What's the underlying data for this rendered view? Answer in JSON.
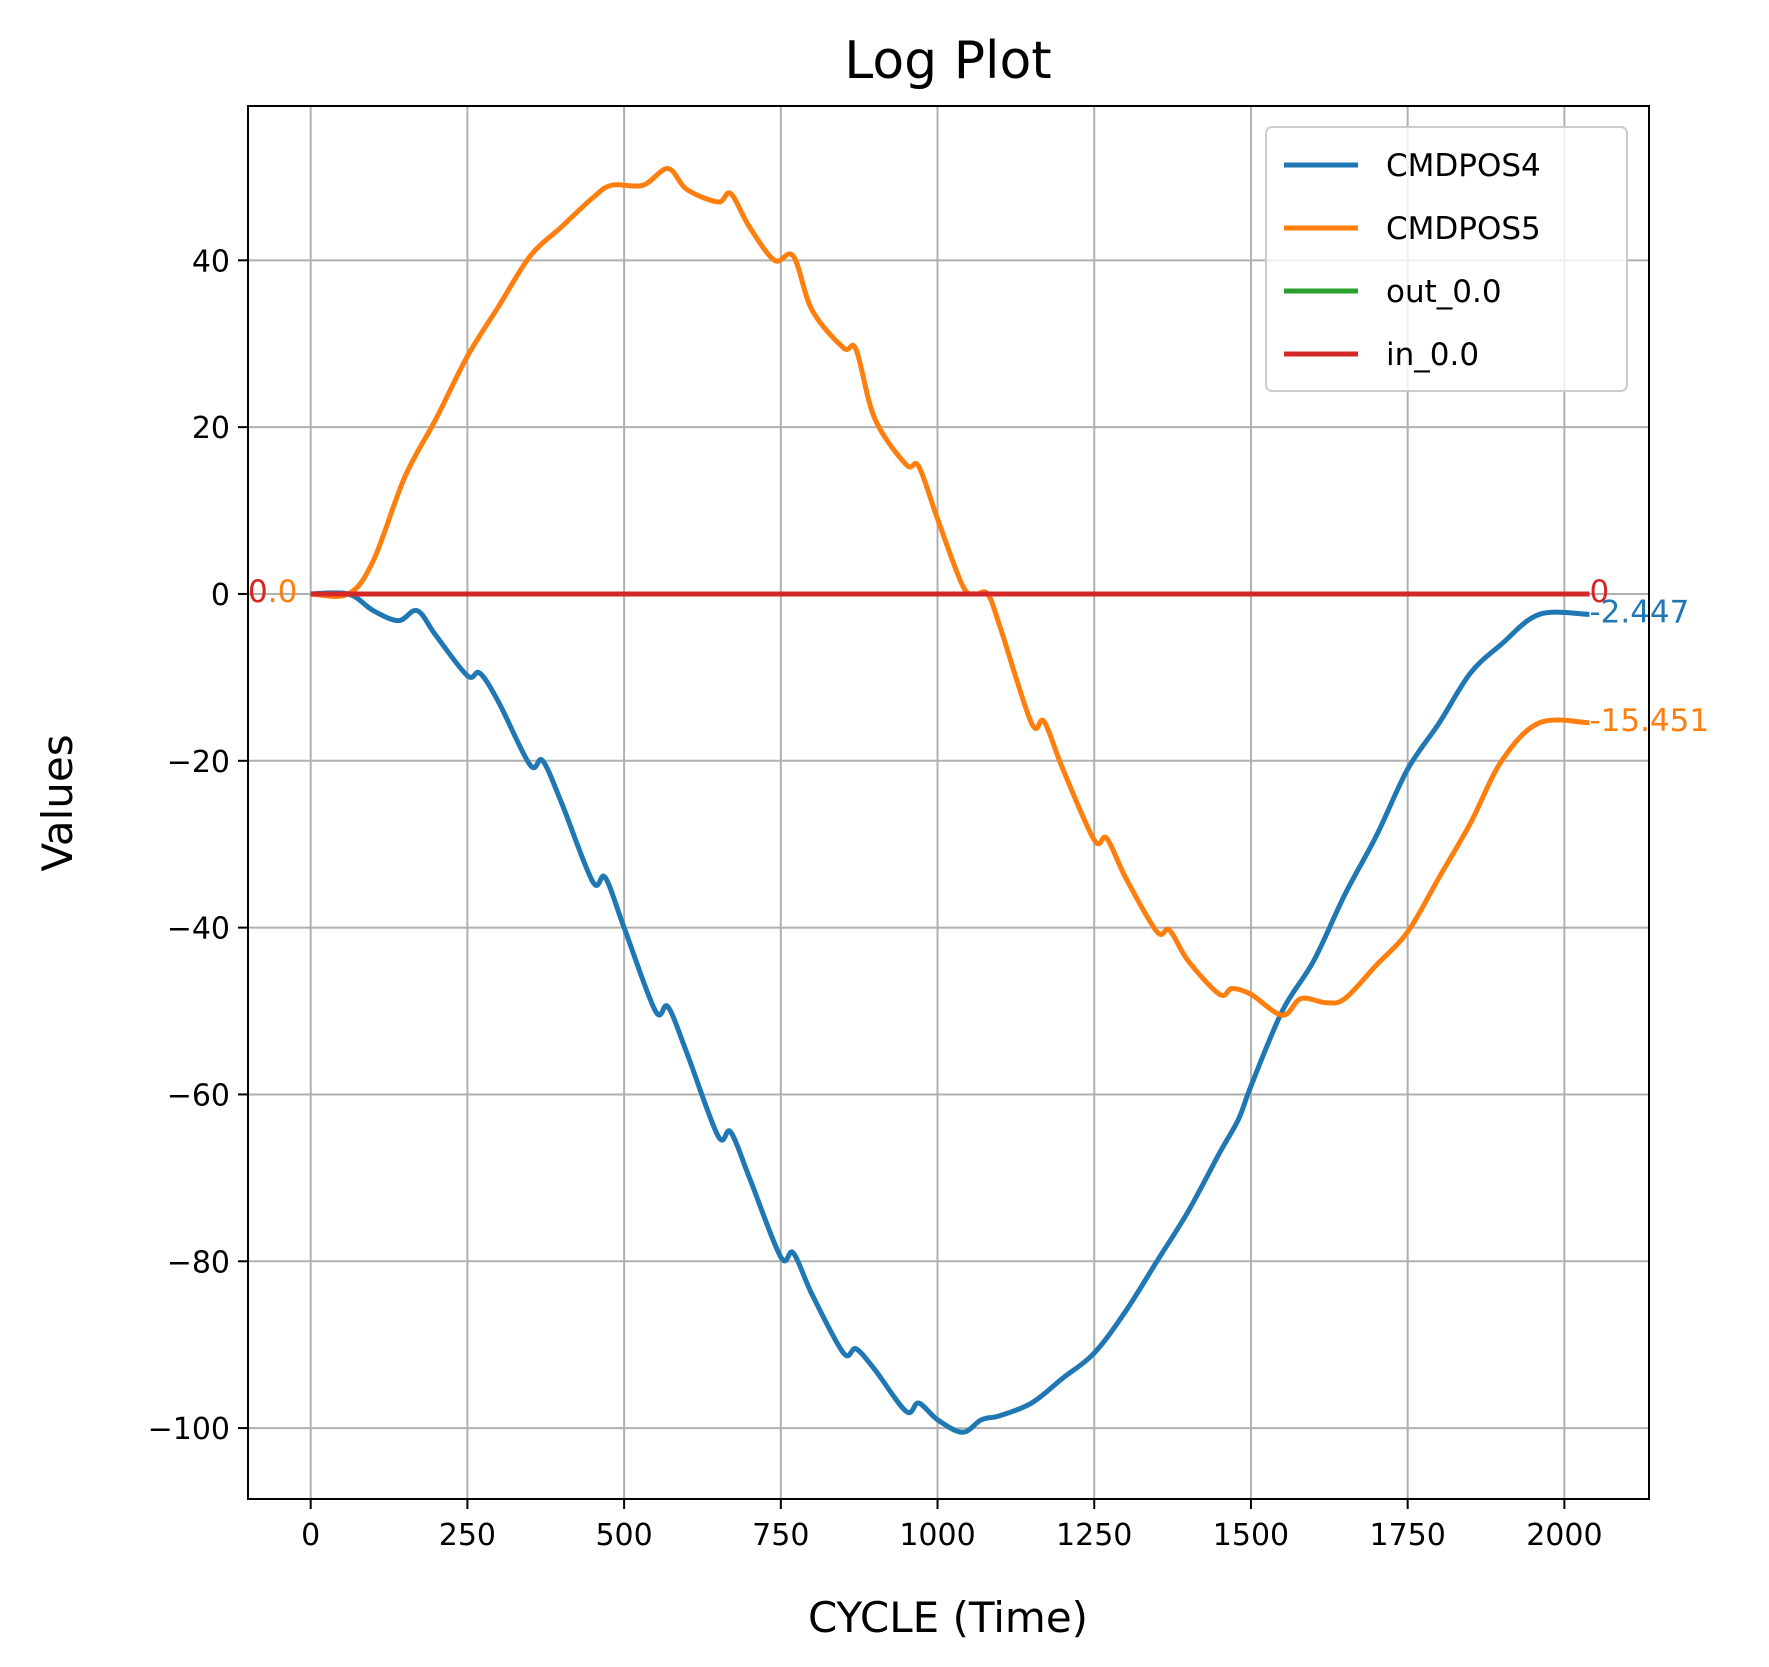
{
  "chart_data": {
    "type": "line",
    "title": "Log Plot",
    "xlabel": "CYCLE (Time)",
    "ylabel": "Values",
    "xlim": [
      -100,
      2135
    ],
    "ylim": [
      -108.5,
      58.5
    ],
    "xticks": [
      0,
      250,
      500,
      750,
      1000,
      1250,
      1500,
      1750,
      2000
    ],
    "yticks": [
      40,
      20,
      0,
      -20,
      -40,
      -60,
      -80,
      -100
    ],
    "xtick_labels": [
      "0",
      "250",
      "500",
      "750",
      "1000",
      "1250",
      "1500",
      "1750",
      "2000"
    ],
    "ytick_labels": [
      "40",
      "20",
      "0",
      "−20",
      "−40",
      "−60",
      "−80",
      "−100"
    ],
    "grid": true,
    "legend_position": "top-right",
    "series": [
      {
        "name": "CMDPOS4",
        "color": "#1f77b4",
        "x": [
          0,
          60,
          100,
          140,
          170,
          200,
          250,
          270,
          300,
          350,
          370,
          400,
          450,
          470,
          500,
          550,
          570,
          600,
          650,
          670,
          700,
          750,
          770,
          800,
          850,
          870,
          900,
          950,
          970,
          1000,
          1040,
          1070,
          1100,
          1150,
          1200,
          1250,
          1300,
          1350,
          1400,
          1450,
          1480,
          1500,
          1550,
          1600,
          1650,
          1700,
          1750,
          1800,
          1850,
          1900,
          1960,
          2040
        ],
        "y": [
          0,
          0,
          -2,
          -3.2,
          -2,
          -5,
          -9.8,
          -9.5,
          -13,
          -20.5,
          -20,
          -25,
          -34.5,
          -34,
          -40,
          -50,
          -49.5,
          -55,
          -65,
          -64.5,
          -70,
          -79.5,
          -79,
          -84,
          -91,
          -90.5,
          -93,
          -98,
          -97,
          -99,
          -100.5,
          -99,
          -98.5,
          -97,
          -94,
          -91,
          -86,
          -80,
          -74,
          -67,
          -63,
          -59,
          -50,
          -44,
          -36,
          -29,
          -21,
          -15.5,
          -9.5,
          -6,
          -2.447,
          -2.447
        ]
      },
      {
        "name": "CMDPOS5",
        "color": "#ff7f0e",
        "x": [
          0,
          60,
          100,
          150,
          200,
          250,
          300,
          350,
          400,
          450,
          480,
          530,
          570,
          600,
          650,
          670,
          700,
          740,
          770,
          800,
          850,
          870,
          900,
          950,
          970,
          1000,
          1040,
          1060,
          1080,
          1100,
          1150,
          1170,
          1200,
          1250,
          1270,
          1300,
          1350,
          1370,
          1400,
          1450,
          1470,
          1500,
          1550,
          1580,
          1620,
          1650,
          1700,
          1750,
          1800,
          1850,
          1900,
          1960,
          2040
        ],
        "y": [
          0,
          0,
          4,
          14,
          21,
          28.5,
          34.5,
          40.5,
          44,
          47.5,
          49,
          49,
          51,
          48.5,
          47,
          48,
          44,
          40,
          40.5,
          34,
          29.5,
          29.3,
          21,
          15.5,
          15.3,
          9,
          1,
          0,
          0,
          -4,
          -15.5,
          -15.3,
          -21,
          -29.5,
          -29.3,
          -34,
          -40.5,
          -40.3,
          -44,
          -48,
          -47.3,
          -48,
          -50.5,
          -48.5,
          -49,
          -48.5,
          -44.5,
          -40.5,
          -34,
          -27.5,
          -20,
          -15.451,
          -15.451
        ]
      },
      {
        "name": "out_0.0",
        "color": "#2ca02c",
        "x": [
          0,
          2040
        ],
        "y": [
          0,
          0
        ]
      },
      {
        "name": "in_0.0",
        "color": "#d62728",
        "x": [
          0,
          2040
        ],
        "y": [
          0,
          0
        ]
      }
    ],
    "annotations": [
      {
        "text": "0.0",
        "x": -100,
        "y": 0,
        "color": "#ff7f0e"
      },
      {
        "text": "0",
        "x": -100,
        "y": 0,
        "color": "#d62728"
      },
      {
        "text": "0",
        "x": 2040,
        "y": 0,
        "color": "#d62728"
      },
      {
        "text": "-2.447",
        "x": 2040,
        "y": -2.447,
        "color": "#1f77b4"
      },
      {
        "text": "-15.451",
        "x": 2040,
        "y": -15.451,
        "color": "#ff7f0e"
      }
    ]
  }
}
